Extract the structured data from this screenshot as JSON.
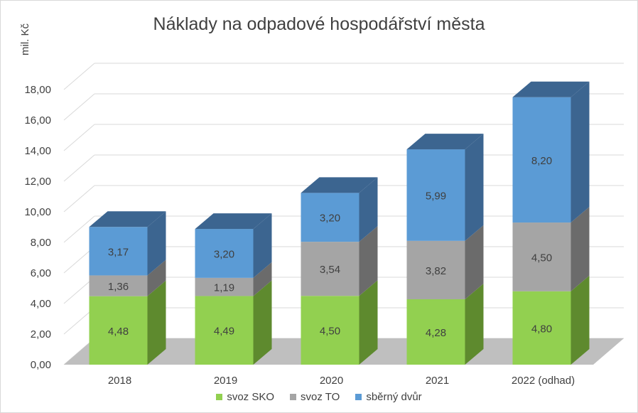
{
  "chart_data": {
    "type": "bar",
    "stacked": true,
    "three_d": true,
    "title": "Náklady na odpadové hospodářství města",
    "ylabel": "mil. Kč",
    "xlabel": "",
    "categories": [
      "2018",
      "2019",
      "2020",
      "2021",
      "2022 (odhad)"
    ],
    "ylim": [
      0,
      18
    ],
    "yticks": [
      "0,00",
      "2,00",
      "4,00",
      "6,00",
      "8,00",
      "10,00",
      "12,00",
      "14,00",
      "16,00",
      "18,00"
    ],
    "series": [
      {
        "name": "svoz SKO",
        "values": [
          4.48,
          4.49,
          4.5,
          4.28,
          4.8
        ],
        "labels": [
          "4,48",
          "4,49",
          "4,50",
          "4,28",
          "4,80"
        ],
        "color": "#92d050",
        "side": "#5e8a2e",
        "top": "#74a83c"
      },
      {
        "name": "svoz TO",
        "values": [
          1.36,
          1.19,
          3.54,
          3.82,
          4.5
        ],
        "labels": [
          "1,36",
          "1,19",
          "3,54",
          "3,82",
          "4,50"
        ],
        "color": "#a5a5a5",
        "side": "#6b6b6b",
        "top": "#888888"
      },
      {
        "name": "sběrný dvůr",
        "values": [
          3.17,
          3.2,
          3.2,
          5.99,
          8.2
        ],
        "labels": [
          "3,17",
          "3,20",
          "3,20",
          "5,99",
          "8,20"
        ],
        "color": "#5b9bd5",
        "side": "#3c6590",
        "top": "#3c6590"
      }
    ],
    "grid": true,
    "legend": "bottom"
  }
}
